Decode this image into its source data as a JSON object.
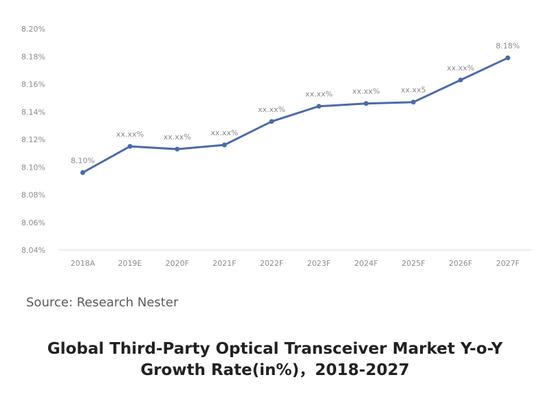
{
  "chart_data": {
    "type": "line",
    "title": "",
    "xlabel": "",
    "ylabel": "",
    "categories": [
      "2018A",
      "2019E",
      "2020F",
      "2021F",
      "2022F",
      "2023F",
      "2024F",
      "2025F",
      "2026F",
      "2027F"
    ],
    "series": [
      {
        "values": [
          8.096,
          8.115,
          8.113,
          8.116,
          8.133,
          8.144,
          8.146,
          8.147,
          8.163,
          8.179
        ],
        "data_labels": [
          "8.10%",
          "xx.xx%",
          "xx.xx%",
          "xx.xx%",
          "xx.xx%",
          "xx.xx%",
          "xx.xx%",
          "xx.xx5",
          "xx.xx%",
          "8.18%"
        ],
        "color": "#4a6aab"
      }
    ],
    "y_ticks": [
      "8.04%",
      "8.06%",
      "8.08%",
      "8.10%",
      "8.12%",
      "8.14%",
      "8.16%",
      "8.18%",
      "8.20%"
    ],
    "ylim": [
      8.04,
      8.2
    ],
    "y_unit": "%",
    "grid": false,
    "legend": "none"
  },
  "source": "Source: Research Nester",
  "title_line1": "Global Third-Party Optical Transceiver Market Y-o-Y",
  "title_line2": "Growth Rate(in%)，2018-2027"
}
